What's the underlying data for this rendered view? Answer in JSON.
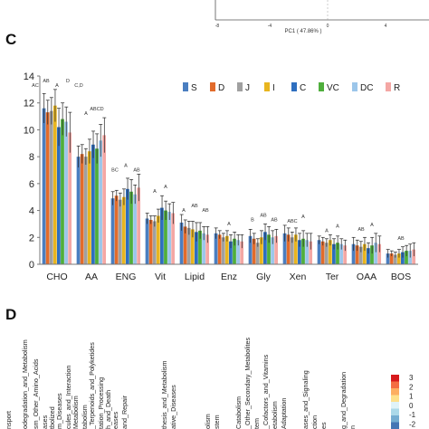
{
  "panel_letters": {
    "c": "C",
    "d": "D"
  },
  "pca_strip": {
    "xlabel": "PC1 ( 47.86% )",
    "xticks": [
      "-8",
      "-4",
      "0",
      "4"
    ]
  },
  "chart_data": {
    "type": "bar",
    "title": "",
    "xlabel": "",
    "ylabel": "",
    "ylim": [
      0,
      14
    ],
    "yticks": [
      0,
      2,
      4,
      6,
      8,
      10,
      12,
      14
    ],
    "grid": false,
    "legend_placement": "top-right",
    "categories": [
      "CHO",
      "AA",
      "ENG",
      "Vit",
      "Lipid",
      "Enz",
      "Gly",
      "Xen",
      "Ter",
      "OAA",
      "BOS"
    ],
    "series": [
      {
        "name": "S",
        "color": "#4a7ec0",
        "values": [
          11.6,
          8.0,
          4.9,
          3.4,
          3.1,
          2.3,
          2.1,
          2.3,
          1.8,
          1.5,
          0.8
        ]
      },
      {
        "name": "D",
        "color": "#e26b2b",
        "values": [
          11.3,
          8.2,
          5.1,
          3.3,
          2.8,
          2.2,
          1.9,
          2.2,
          1.7,
          1.4,
          0.8
        ]
      },
      {
        "name": "J",
        "color": "#a0a0a0",
        "values": [
          11.4,
          8.0,
          4.8,
          3.2,
          2.7,
          2.0,
          1.6,
          2.0,
          1.6,
          1.3,
          0.7
        ]
      },
      {
        "name": "I",
        "color": "#e8b51f",
        "values": [
          11.8,
          8.4,
          5.0,
          3.6,
          2.6,
          2.1,
          2.0,
          2.2,
          1.8,
          1.5,
          0.8
        ]
      },
      {
        "name": "C",
        "color": "#2e6fbf",
        "values": [
          10.2,
          8.9,
          5.6,
          4.2,
          2.4,
          1.7,
          2.4,
          1.8,
          1.5,
          1.2,
          0.9
        ]
      },
      {
        "name": "VC",
        "color": "#4fae3c",
        "values": [
          10.8,
          8.6,
          5.4,
          4.0,
          2.5,
          1.9,
          2.2,
          1.9,
          1.6,
          1.4,
          1.0
        ]
      },
      {
        "name": "DC",
        "color": "#9cc6ea",
        "values": [
          10.6,
          9.2,
          5.2,
          3.9,
          2.3,
          1.8,
          2.0,
          1.8,
          1.5,
          1.6,
          1.0
        ]
      },
      {
        "name": "R",
        "color": "#f4a7a4",
        "values": [
          9.8,
          9.6,
          5.7,
          3.8,
          2.2,
          1.7,
          2.1,
          1.7,
          1.4,
          1.5,
          1.1
        ]
      }
    ],
    "errors": [
      [
        1.1,
        0.8,
        0.5,
        0.4,
        0.6,
        0.4,
        0.5,
        0.6,
        0.3,
        0.5,
        0.3
      ],
      [
        0.9,
        0.7,
        0.4,
        0.3,
        0.5,
        0.3,
        0.4,
        0.5,
        0.3,
        0.4,
        0.2
      ],
      [
        1.0,
        0.6,
        0.5,
        0.4,
        0.5,
        0.3,
        0.3,
        0.4,
        0.3,
        0.4,
        0.2
      ],
      [
        1.2,
        0.9,
        0.6,
        0.5,
        0.6,
        0.4,
        0.5,
        0.5,
        0.4,
        0.5,
        0.3
      ],
      [
        1.4,
        1.0,
        0.8,
        0.9,
        0.7,
        0.5,
        0.6,
        0.5,
        0.4,
        0.4,
        0.4
      ],
      [
        1.2,
        1.1,
        0.9,
        0.7,
        0.6,
        0.5,
        0.6,
        0.6,
        0.5,
        0.6,
        0.4
      ],
      [
        1.1,
        1.2,
        0.7,
        0.6,
        0.5,
        0.4,
        0.5,
        0.5,
        0.4,
        0.7,
        0.5
      ],
      [
        1.5,
        1.3,
        1.0,
        0.8,
        0.6,
        0.5,
        0.5,
        0.6,
        0.4,
        0.6,
        0.5
      ]
    ],
    "annotations": [
      {
        "category": "CHO",
        "labels": [
          "AC",
          "AB",
          "A",
          "D",
          "C,D"
        ]
      },
      {
        "category": "AA",
        "labels": [
          "A",
          "ABCD"
        ]
      },
      {
        "category": "ENG",
        "labels": [
          "BC",
          "A",
          "AB"
        ]
      },
      {
        "category": "Vit",
        "labels": [
          "A",
          "A"
        ]
      },
      {
        "category": "Lipid",
        "labels": [
          "A",
          "AB",
          "AB"
        ]
      },
      {
        "category": "Enz",
        "labels": [
          "A"
        ]
      },
      {
        "category": "Gly",
        "labels": [
          "B",
          "AB",
          "AB"
        ]
      },
      {
        "category": "Xen",
        "labels": [
          "ABC",
          "A"
        ]
      },
      {
        "category": "Ter",
        "labels": [
          "A",
          "A"
        ]
      },
      {
        "category": "OAA",
        "labels": [
          "AB",
          "A"
        ]
      },
      {
        "category": "BOS",
        "labels": [
          "AB"
        ]
      }
    ]
  },
  "heatmap_strip": {
    "pathway_labels": [
      "nsport",
      "odegradation_and_Metabolism",
      "sm_Other_Amino_Acids",
      "ases",
      "tbolized",
      "m_Diseases",
      "cules_and_Interaction",
      "Metabolism",
      "tabolism",
      "_Terpenoids_and_Polyketides",
      "tation_Processing",
      "h_and_Death",
      "eases",
      "and_Repair",
      "thesis_and_Metabolism",
      "ative_Diseases",
      "olism",
      "stem",
      "Catabolism",
      "_Other_Secondary_Metabolites",
      "tem",
      "_Cofactors_and_Vitamins",
      "etabolism",
      "Adaptation",
      "ases_and_Signaling",
      "ction",
      "es",
      "g_and_Degradation",
      "n"
    ],
    "scale_ticks": [
      "3",
      "2",
      "1",
      "0",
      "-1",
      "-2"
    ],
    "scale_colors": [
      "#d7191c",
      "#f46d43",
      "#fdae61",
      "#fee08b",
      "#e0f3f8",
      "#abd9e9",
      "#74add1",
      "#4575b4"
    ]
  }
}
